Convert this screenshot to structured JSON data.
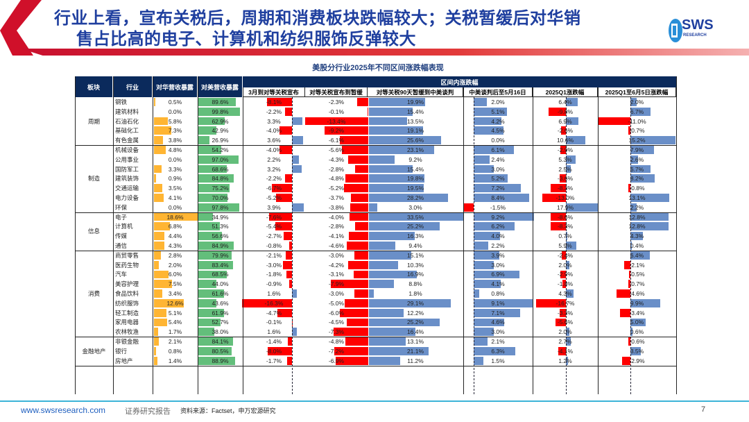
{
  "header": {
    "title_line1": "行业上看，宣布关税后，周期和消费板块跌幅较大；关税暂缓后对华销",
    "title_line2": "售占比高的电子、计算机和纺织服饰反弹较大",
    "logo_text": "SWS",
    "logo_sub": "RESEARCH"
  },
  "table": {
    "title": "美股分行业2025年不同区间涨跌幅表现",
    "group_header": "区间内涨跌幅",
    "columns": [
      "板块",
      "行业",
      "对华营收暴露",
      "对美营收暴露",
      "3月到对等关税宣布",
      "对等关税宣布到暂缓",
      "对等关税90天暂缓到中美谈判",
      "中美谈判后至5月16日",
      "2025Q1涨跌幅",
      "2025Q1至6月5日涨跌幅"
    ],
    "groups": [
      {
        "name": "周期",
        "rows": [
          [
            "钢铁",
            "0.5%",
            "89.6%",
            "-8.1%",
            "-2.3%",
            "19.9%",
            "2.0%",
            "6.4%",
            "2.0%"
          ],
          [
            "建筑材料",
            "0.0%",
            "99.8%",
            "-2.2%",
            "-0.1%",
            "15.4%",
            "5.1%",
            "-9.8%",
            "6.7%"
          ],
          [
            "石油石化",
            "5.8%",
            "62.9%",
            "3.3%",
            "-13.4%",
            "13.5%",
            "4.2%",
            "6.9%",
            "-11.0%"
          ],
          [
            "基础化工",
            "7.3%",
            "42.9%",
            "-4.0%",
            "-9.2%",
            "19.1%",
            "4.5%",
            "-2.6%",
            "-0.7%"
          ],
          [
            "有色金属",
            "3.8%",
            "26.9%",
            "3.6%",
            "-6.1%",
            "25.6%",
            "0.0%",
            "10.6%",
            "15.2%"
          ]
        ]
      },
      {
        "name": "制造",
        "rows": [
          [
            "机械设备",
            "4.8%",
            "54.2%",
            "-4.0%",
            "-5.6%",
            "23.1%",
            "6.1%",
            "-2.9%",
            "7.9%"
          ],
          [
            "公用事业",
            "0.0%",
            "97.0%",
            "2.2%",
            "-4.3%",
            "9.2%",
            "2.4%",
            "5.3%",
            "2.6%"
          ],
          [
            "国防军工",
            "3.3%",
            "68.6%",
            "3.2%",
            "-2.8%",
            "15.4%",
            "3.0%",
            "2.5%",
            "6.7%"
          ],
          [
            "建筑装饰",
            "0.9%",
            "84.8%",
            "-2.2%",
            "-4.8%",
            "19.8%",
            "5.2%",
            "-3.6%",
            "8.2%"
          ],
          [
            "交通运输",
            "3.5%",
            "75.2%",
            "-6.7%",
            "-5.2%",
            "19.5%",
            "7.2%",
            "-8.3%",
            "-0.8%"
          ],
          [
            "电力设备",
            "4.1%",
            "70.0%",
            "-5.2%",
            "-3.7%",
            "28.2%",
            "8.4%",
            "-13.0%",
            "13.1%"
          ],
          [
            "环保",
            "0.0%",
            "97.8%",
            "3.9%",
            "-3.8%",
            "3.0%",
            "-1.5%",
            "17.9%",
            "2.2%"
          ]
        ]
      },
      {
        "name": "信息",
        "rows": [
          [
            "电子",
            "18.6%",
            "34.9%",
            "-7.6%",
            "-4.0%",
            "33.5%",
            "9.2%",
            "-8.6%",
            "12.8%"
          ],
          [
            "计算机",
            "6.8%",
            "51.3%",
            "-5.4%",
            "-2.8%",
            "25.2%",
            "6.2%",
            "-8.3%",
            "12.8%"
          ],
          [
            "传媒",
            "4.4%",
            "56.6%",
            "-2.7%",
            "-4.1%",
            "16.3%",
            "4.0%",
            "0.7%",
            "4.3%"
          ],
          [
            "通信",
            "4.3%",
            "84.9%",
            "-0.8%",
            "-4.6%",
            "9.4%",
            "2.2%",
            "5.9%",
            "0.4%"
          ]
        ]
      },
      {
        "name": "消费",
        "rows": [
          [
            "商贸零售",
            "2.8%",
            "79.9%",
            "-2.1%",
            "-3.0%",
            "15.1%",
            "3.9%",
            "-2.4%",
            "6.4%"
          ],
          [
            "医药生物",
            "2.0%",
            "83.4%",
            "-3.0%",
            "-4.2%",
            "10.3%",
            "3.0%",
            "2.0%",
            "-2.1%"
          ],
          [
            "汽车",
            "6.0%",
            "68.5%",
            "-1.8%",
            "-3.1%",
            "16.9%",
            "6.9%",
            "-2.9%",
            "-0.5%"
          ],
          [
            "美容护理",
            "7.5%",
            "44.0%",
            "-0.9%",
            "-7.9%",
            "8.8%",
            "4.1%",
            "-1.8%",
            "-0.7%"
          ],
          [
            "食品饮料",
            "3.4%",
            "61.6%",
            "1.6%",
            "-3.0%",
            "1.8%",
            "0.8%",
            "4.3%",
            "-4.6%"
          ],
          [
            "纺织服饰",
            "12.6%",
            "43.6%",
            "-16.3%",
            "-5.0%",
            "29.1%",
            "9.1%",
            "-16.7%",
            "9.9%"
          ],
          [
            "轻工制造",
            "5.1%",
            "61.9%",
            "-4.7%",
            "-6.0%",
            "12.2%",
            "7.1%",
            "-3.3%",
            "-3.4%"
          ],
          [
            "家用电器",
            "5.4%",
            "52.7%",
            "-0.1%",
            "-4.5%",
            "25.2%",
            "4.6%",
            "-5.6%",
            "5.0%"
          ],
          [
            "农林牧渔",
            "1.7%",
            "38.0%",
            "1.6%",
            "-7.3%",
            "16.4%",
            "3.0%",
            "2.0%",
            "0.6%"
          ]
        ]
      },
      {
        "name": "金融地产",
        "rows": [
          [
            "非银金融",
            "2.1%",
            "84.1%",
            "-1.4%",
            "-4.8%",
            "13.1%",
            "2.1%",
            "2.7%",
            "-0.6%"
          ],
          [
            "银行",
            "0.8%",
            "80.5%",
            "-8.0%",
            "-7.2%",
            "21.1%",
            "6.3%",
            "-4.1%",
            "3.5%"
          ],
          [
            "房地产",
            "1.4%",
            "88.9%",
            "-1.7%",
            "-6.9%",
            "11.2%",
            "1.5%",
            "1.2%",
            "-2.9%"
          ]
        ]
      }
    ],
    "colors": {
      "header_bg": "#0b2a5c",
      "china_bar": "#ffb533",
      "us_bar": "#63be7b",
      "positive_bar": "#6a8fc8",
      "negative_bar": "#ff0000"
    }
  },
  "footer": {
    "website": "www.swsresearch.com",
    "report_type": "证券研究报告",
    "source": "资料来源：Factset，申万宏源研究",
    "page": "7"
  }
}
